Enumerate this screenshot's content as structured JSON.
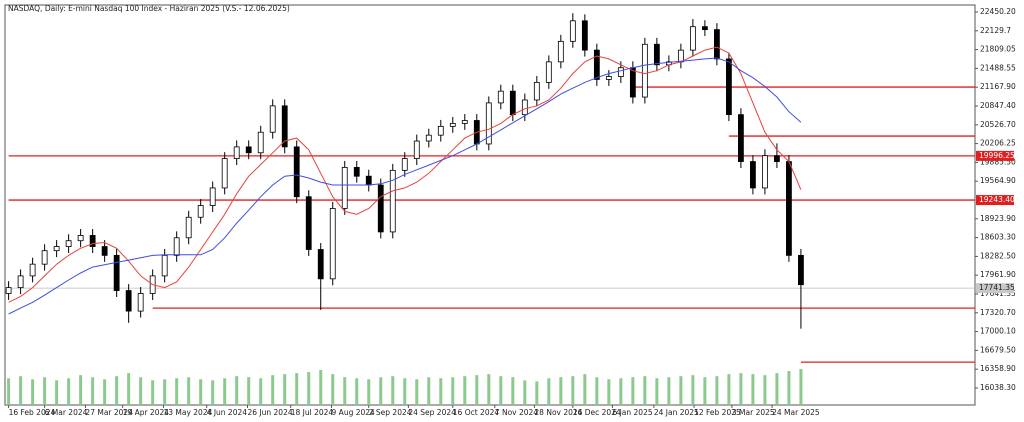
{
  "chart_data": {
    "type": "candlestick",
    "title": "NASDAQ, Daily: E-mini Nasdaq 100 Index - Haziran 2025 (V.S.- 12.06.2025)",
    "xlim": [
      -0.3,
      80.5
    ],
    "xticks": [
      {
        "value": 0,
        "label": "16 Feb 2024"
      },
      {
        "value": 3,
        "label": "6 Mar 2024"
      },
      {
        "value": 6.4,
        "label": "27 Mar 2024"
      },
      {
        "value": 9.5,
        "label": "19 Apr 2024"
      },
      {
        "value": 12.9,
        "label": "13 May 2024"
      },
      {
        "value": 16.5,
        "label": "4 Jun 2024"
      },
      {
        "value": 19.9,
        "label": "26 Jun 2024"
      },
      {
        "value": 23.5,
        "label": "18 Jul 2024"
      },
      {
        "value": 26.9,
        "label": "9 Aug 2024"
      },
      {
        "value": 30,
        "label": "2 Sep 2024"
      },
      {
        "value": 33.3,
        "label": "24 Sep 2024"
      },
      {
        "value": 37,
        "label": "16 Oct 2024"
      },
      {
        "value": 40.5,
        "label": "7 Nov 2024"
      },
      {
        "value": 43.8,
        "label": "28 Nov 2024"
      },
      {
        "value": 47,
        "label": "16 Dec 2024"
      },
      {
        "value": 50.3,
        "label": "6 Jan 2025"
      },
      {
        "value": 53.75,
        "label": "24 Jan 2025"
      },
      {
        "value": 57.1,
        "label": "12 Feb 2025"
      },
      {
        "value": 60.25,
        "label": "3 Mar 2025"
      },
      {
        "value": 63.6,
        "label": "24 Mar 2025"
      }
    ],
    "ylim": [
      15748.4,
      22569.6
    ],
    "yticks": [
      {
        "value": 22450.2,
        "label": "22450.20"
      },
      22129.7,
      21809.05,
      21488.55,
      {
        "value": 21167.9,
        "label": "21167.90"
      },
      {
        "value": 20847.4,
        "label": "20847.40"
      },
      {
        "value": 20526.7,
        "label": "20526.70"
      },
      20206.25,
      {
        "value": 19885.5,
        "label": "19885.50"
      },
      {
        "value": 19564.9,
        "label": "19564.90"
      },
      {
        "value": 18923.9,
        "label": "18923.90"
      },
      {
        "value": 18603.3,
        "label": "18603.30"
      },
      {
        "value": 18282.5,
        "label": "18282.50"
      },
      {
        "value": 17961.9,
        "label": "17961.90"
      },
      17641.35,
      {
        "value": 17320.7,
        "label": "17320.70"
      },
      {
        "value": 17000.1,
        "label": "17000.10"
      },
      {
        "value": 16679.5,
        "label": "16679.50"
      },
      {
        "value": 16358.9,
        "label": "16358.90"
      },
      {
        "value": 16038.3,
        "label": "16038.30"
      }
    ],
    "open": [
      17650,
      17750,
      17950,
      18150,
      18380,
      18450,
      18550,
      18640,
      18450,
      18300,
      17700,
      17350,
      17650,
      17950,
      18300,
      18600,
      18950,
      19150,
      19450,
      19950,
      20150,
      20050,
      20400,
      20850,
      20150,
      19300,
      18400,
      17900,
      19100,
      19800,
      19650,
      19500,
      18700,
      19750,
      19950,
      20250,
      20350,
      20500,
      20550,
      20600,
      20200,
      20900,
      21100,
      20700,
      20950,
      21250,
      21600,
      21950,
      22300,
      21800,
      21300,
      21350,
      21500,
      21000,
      21900,
      21550,
      21600,
      21800,
      22200,
      22150,
      21650,
      20700,
      19900,
      19450,
      20000,
      19900,
      18300
    ],
    "high": [
      17860,
      18060,
      18260,
      18490,
      18560,
      18660,
      18750,
      18750,
      18560,
      18410,
      17810,
      17760,
      18060,
      18410,
      18710,
      19060,
      19260,
      19560,
      20060,
      20260,
      20260,
      20510,
      20960,
      20960,
      20260,
      19410,
      18510,
      19210,
      19910,
      19910,
      19760,
      19610,
      19860,
      20060,
      20360,
      20460,
      20610,
      20660,
      20710,
      20710,
      21010,
      21210,
      21210,
      21060,
      21360,
      21710,
      22060,
      22430,
      22410,
      21910,
      21460,
      21610,
      21610,
      22010,
      22010,
      21710,
      21910,
      22330,
      22310,
      22260,
      21760,
      20810,
      20010,
      20110,
      20210,
      20010,
      18410
    ],
    "low": [
      17540,
      17640,
      17840,
      18040,
      18270,
      18340,
      18440,
      18340,
      18190,
      17590,
      17150,
      17240,
      17540,
      17840,
      18190,
      18490,
      18840,
      19040,
      19340,
      19840,
      19940,
      19940,
      20290,
      20040,
      19190,
      18290,
      17370,
      17790,
      18990,
      19540,
      19390,
      18590,
      18590,
      19640,
      19840,
      20140,
      20240,
      20390,
      20440,
      20090,
      20090,
      20790,
      20590,
      20590,
      20840,
      21140,
      21490,
      21840,
      21690,
      21190,
      21190,
      21240,
      20890,
      20890,
      21440,
      21440,
      21490,
      21690,
      22040,
      21540,
      20590,
      19790,
      19340,
      19340,
      19790,
      18190,
      17050
    ],
    "close": [
      17750,
      17950,
      18150,
      18380,
      18450,
      18550,
      18640,
      18450,
      18300,
      17700,
      17350,
      17650,
      17950,
      18300,
      18600,
      18950,
      19150,
      19450,
      19950,
      20150,
      20050,
      20400,
      20850,
      20150,
      19300,
      18400,
      17900,
      19100,
      19800,
      19650,
      19500,
      18700,
      19750,
      19950,
      20250,
      20350,
      20500,
      20550,
      20600,
      20200,
      20900,
      21100,
      20700,
      20950,
      21250,
      21600,
      21950,
      22300,
      21800,
      21300,
      21350,
      21500,
      21000,
      21900,
      21550,
      21600,
      21800,
      22200,
      22150,
      21650,
      20700,
      19900,
      19450,
      20000,
      19900,
      18300,
      17800
    ],
    "moving_averages": [
      {
        "color": "#e8413c",
        "values": [
          17500,
          17600,
          17750,
          17950,
          18150,
          18300,
          18420,
          18500,
          18520,
          18420,
          18200,
          17950,
          17800,
          17750,
          17850,
          18100,
          18400,
          18700,
          19000,
          19350,
          19650,
          19850,
          20050,
          20250,
          20300,
          20100,
          19700,
          19300,
          19050,
          19000,
          19100,
          19300,
          19400,
          19450,
          19550,
          19700,
          19900,
          20100,
          20300,
          20400,
          20450,
          20550,
          20700,
          20800,
          20850,
          20950,
          21150,
          21400,
          21600,
          21700,
          21650,
          21550,
          21450,
          21400,
          21450,
          21550,
          21600,
          21700,
          21800,
          21850,
          21750,
          21400,
          20900,
          20400,
          20100,
          19900,
          19420
        ]
      },
      {
        "color": "#3c4fe0",
        "values": [
          17300,
          17400,
          17500,
          17620,
          17750,
          17880,
          18000,
          18100,
          18140,
          18180,
          18220,
          18260,
          18300,
          18310,
          18310,
          18310,
          18310,
          18400,
          18600,
          18850,
          19070,
          19300,
          19500,
          19650,
          19670,
          19620,
          19550,
          19500,
          19500,
          19500,
          19500,
          19520,
          19580,
          19680,
          19760,
          19840,
          19920,
          20000,
          20100,
          20200,
          20320,
          20440,
          20560,
          20680,
          20800,
          20920,
          21050,
          21150,
          21250,
          21330,
          21400,
          21450,
          21500,
          21545,
          21570,
          21590,
          21610,
          21630,
          21650,
          21665,
          21600,
          21450,
          21330,
          21180,
          21000,
          20750,
          20570
        ]
      }
    ],
    "volume": {
      "color": "#8cc98c",
      "values": [
        26,
        28,
        25,
        27,
        24,
        26,
        29,
        27,
        25,
        28,
        31,
        27,
        24,
        25,
        26,
        27,
        25,
        24,
        26,
        28,
        27,
        26,
        29,
        30,
        31,
        32,
        34,
        30,
        27,
        26,
        25,
        27,
        28,
        26,
        25,
        27,
        26,
        27,
        28,
        29,
        30,
        28,
        27,
        24,
        23,
        26,
        27,
        28,
        30,
        27,
        25,
        26,
        27,
        28,
        26,
        27,
        28,
        29,
        27,
        28,
        30,
        31,
        30,
        29,
        31,
        33,
        35
      ]
    },
    "levels": [
      {
        "value": 21170,
        "start": 52
      },
      {
        "value": 20335,
        "start": 60
      },
      {
        "value": 19996.25,
        "start": 0,
        "tagged": true
      },
      {
        "value": 19243.4,
        "label": "19243.40",
        "start": 0,
        "tagged": true
      },
      {
        "value": 17400,
        "start": 12
      },
      {
        "value": 16480,
        "start": 66
      }
    ],
    "level_color": "#e02020",
    "last_price": {
      "value": 17741.35,
      "label": "17741.35"
    }
  }
}
